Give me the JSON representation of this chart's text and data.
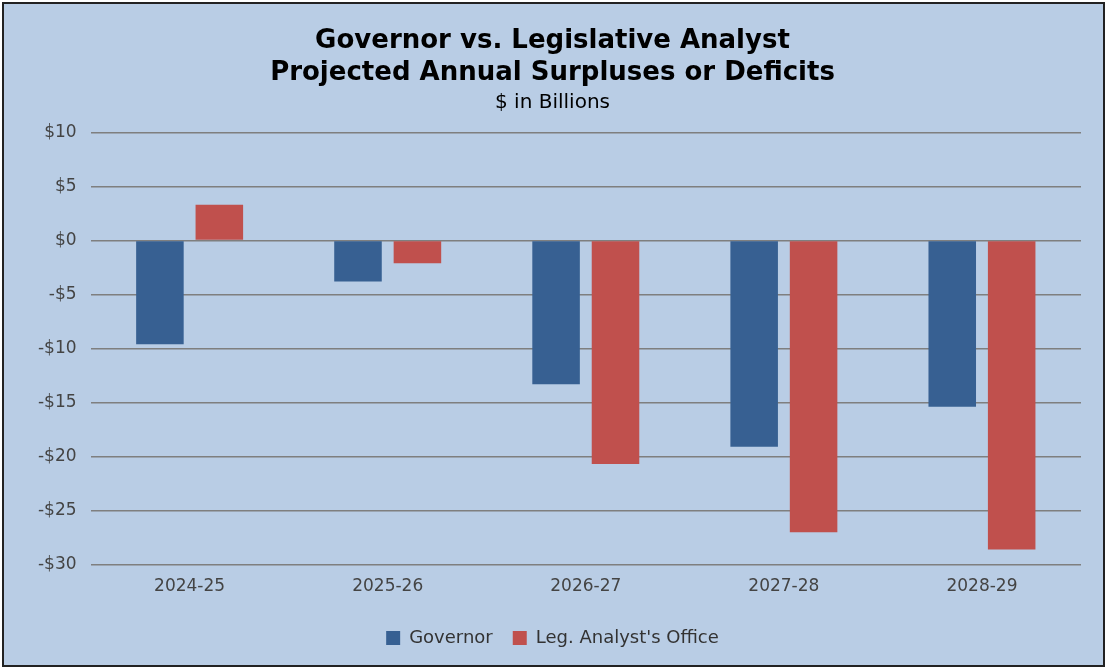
{
  "chart_data": {
    "type": "bar",
    "title": [
      "Governor vs. Legislative Analyst",
      "Projected Annual Surpluses or Deficits"
    ],
    "subtitle": "$ in Billions",
    "categories": [
      "2024-25",
      "2025-26",
      "2026-27",
      "2027-28",
      "2028-29"
    ],
    "series": [
      {
        "name": "Governor",
        "color": "#376092",
        "values": [
          -9.6,
          -3.8,
          -13.3,
          -19.1,
          -15.4
        ]
      },
      {
        "name": "Leg. Analyst's Office",
        "color": "#c0504d",
        "values": [
          3.3,
          -2.1,
          -20.7,
          -27.0,
          -28.6
        ]
      }
    ],
    "ylim": [
      -30,
      10
    ],
    "yticks": [
      {
        "value": -30,
        "label": "-$30"
      },
      {
        "value": -25,
        "label": "-$25"
      },
      {
        "value": -20,
        "label": "-$20"
      },
      {
        "value": -15,
        "label": "-$15"
      },
      {
        "value": -10,
        "label": "-$10"
      },
      {
        "value": -5,
        "label": "-$5"
      },
      {
        "value": 0,
        "label": "$0"
      },
      {
        "value": 5,
        "label": "$5"
      },
      {
        "value": 10,
        "label": "$10"
      }
    ],
    "grid": "y",
    "legend": "bottom"
  }
}
